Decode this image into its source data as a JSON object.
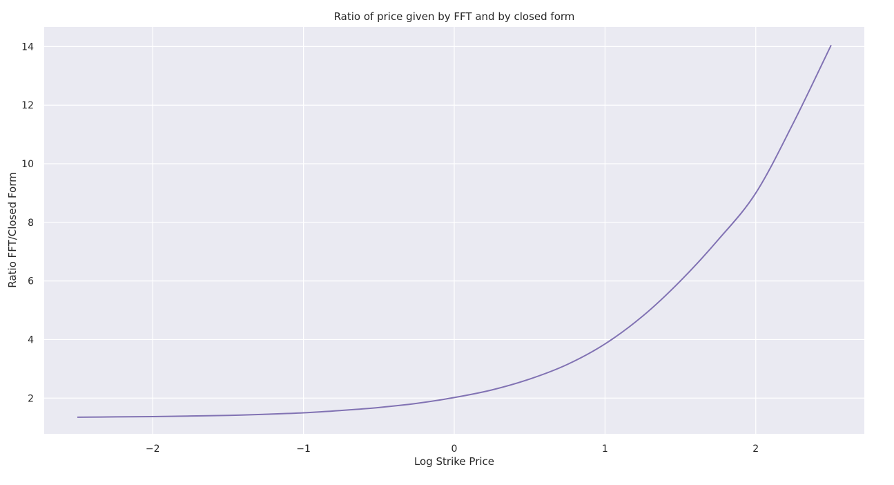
{
  "chart_data": {
    "type": "line",
    "title": "Ratio of price given by FFT and by closed form",
    "xlabel": "Log Strike Price",
    "ylabel": "Ratio FFT/Closed Form",
    "xlim": [
      -2.72,
      2.72
    ],
    "ylim": [
      0.78,
      14.67
    ],
    "xticks": [
      -2,
      -1,
      0,
      1,
      2
    ],
    "xtick_labels": [
      "−2",
      "−1",
      "0",
      "1",
      "2"
    ],
    "yticks": [
      2,
      4,
      6,
      8,
      10,
      12,
      14
    ],
    "ytick_labels": [
      "2",
      "4",
      "6",
      "8",
      "10",
      "12",
      "14"
    ],
    "grid": true,
    "background_color": "#eaeaf2",
    "grid_color": "#ffffff",
    "series": [
      {
        "name": "",
        "color": "#8172b3",
        "x": [
          -2.5,
          -2.25,
          -2.0,
          -1.75,
          -1.5,
          -1.25,
          -1.0,
          -0.75,
          -0.5,
          -0.25,
          0.0,
          0.25,
          0.5,
          0.75,
          1.0,
          1.25,
          1.5,
          1.75,
          2.0,
          2.25,
          2.5
        ],
        "y": [
          1.35,
          1.36,
          1.37,
          1.39,
          1.41,
          1.45,
          1.5,
          1.58,
          1.68,
          1.82,
          2.02,
          2.28,
          2.65,
          3.15,
          3.85,
          4.8,
          6.0,
          7.4,
          9.0,
          11.4,
          14.05
        ]
      }
    ]
  }
}
